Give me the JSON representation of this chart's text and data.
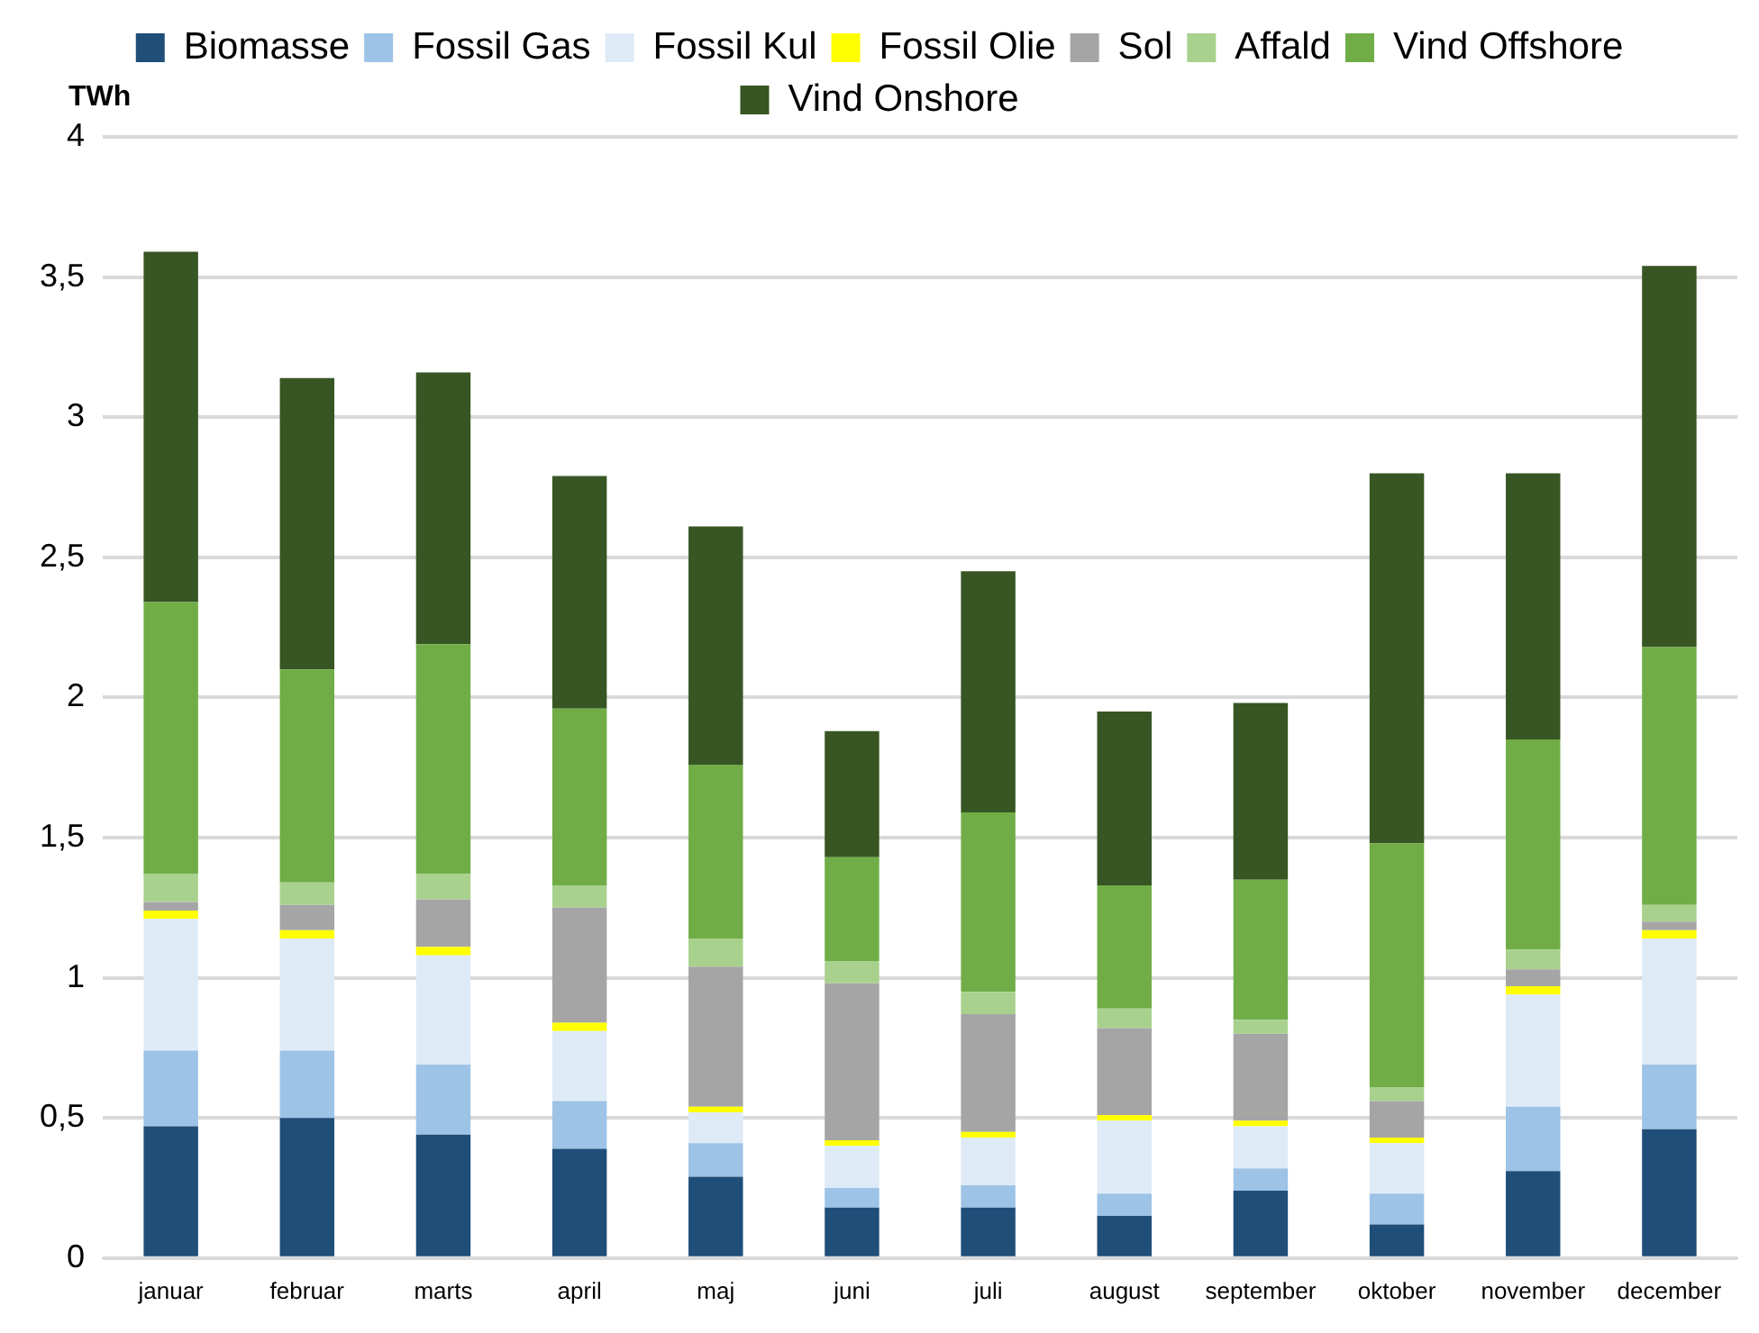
{
  "chart_data": {
    "type": "bar",
    "stacked": true,
    "ylabel": "TWh",
    "categories": [
      "januar",
      "februar",
      "marts",
      "april",
      "maj",
      "juni",
      "juli",
      "august",
      "september",
      "oktober",
      "november",
      "december"
    ],
    "series": [
      {
        "name": "Biomasse",
        "color": "#1f4e79",
        "values": [
          0.47,
          0.5,
          0.44,
          0.39,
          0.29,
          0.18,
          0.18,
          0.15,
          0.24,
          0.12,
          0.31,
          0.46
        ]
      },
      {
        "name": "Fossil Gas",
        "color": "#9dc3e6",
        "values": [
          0.27,
          0.24,
          0.25,
          0.17,
          0.12,
          0.07,
          0.08,
          0.08,
          0.08,
          0.11,
          0.23,
          0.23
        ]
      },
      {
        "name": "Fossil Kul",
        "color": "#deebf7",
        "values": [
          0.47,
          0.4,
          0.39,
          0.25,
          0.11,
          0.15,
          0.17,
          0.26,
          0.15,
          0.18,
          0.4,
          0.45
        ]
      },
      {
        "name": "Fossil Olie",
        "color": "#ffff00",
        "values": [
          0.03,
          0.03,
          0.03,
          0.03,
          0.02,
          0.02,
          0.02,
          0.02,
          0.02,
          0.02,
          0.03,
          0.03
        ]
      },
      {
        "name": "Sol",
        "color": "#a5a5a5",
        "values": [
          0.03,
          0.09,
          0.17,
          0.41,
          0.5,
          0.56,
          0.42,
          0.31,
          0.31,
          0.13,
          0.06,
          0.03
        ]
      },
      {
        "name": "Affald",
        "color": "#a9d18e",
        "values": [
          0.1,
          0.08,
          0.09,
          0.08,
          0.1,
          0.08,
          0.08,
          0.07,
          0.05,
          0.05,
          0.07,
          0.06
        ]
      },
      {
        "name": "Vind Offshore",
        "color": "#70ad47",
        "values": [
          0.97,
          0.76,
          0.82,
          0.63,
          0.62,
          0.37,
          0.64,
          0.44,
          0.5,
          0.87,
          0.75,
          0.92
        ]
      },
      {
        "name": "Vind Onshore",
        "color": "#375623",
        "values": [
          1.25,
          1.04,
          0.97,
          0.83,
          0.85,
          0.45,
          0.86,
          0.62,
          0.63,
          1.32,
          0.95,
          1.36
        ]
      }
    ],
    "ylim": [
      0,
      4
    ],
    "yticks": [
      0,
      {
        "value": 0.5,
        "label": "0,5"
      },
      1,
      {
        "value": 1.5,
        "label": "1,5"
      },
      2,
      {
        "value": 2.5,
        "label": "2,5"
      },
      3,
      {
        "value": 3.5,
        "label": "3,5"
      },
      4
    ],
    "grid": "y",
    "legend": "top"
  }
}
